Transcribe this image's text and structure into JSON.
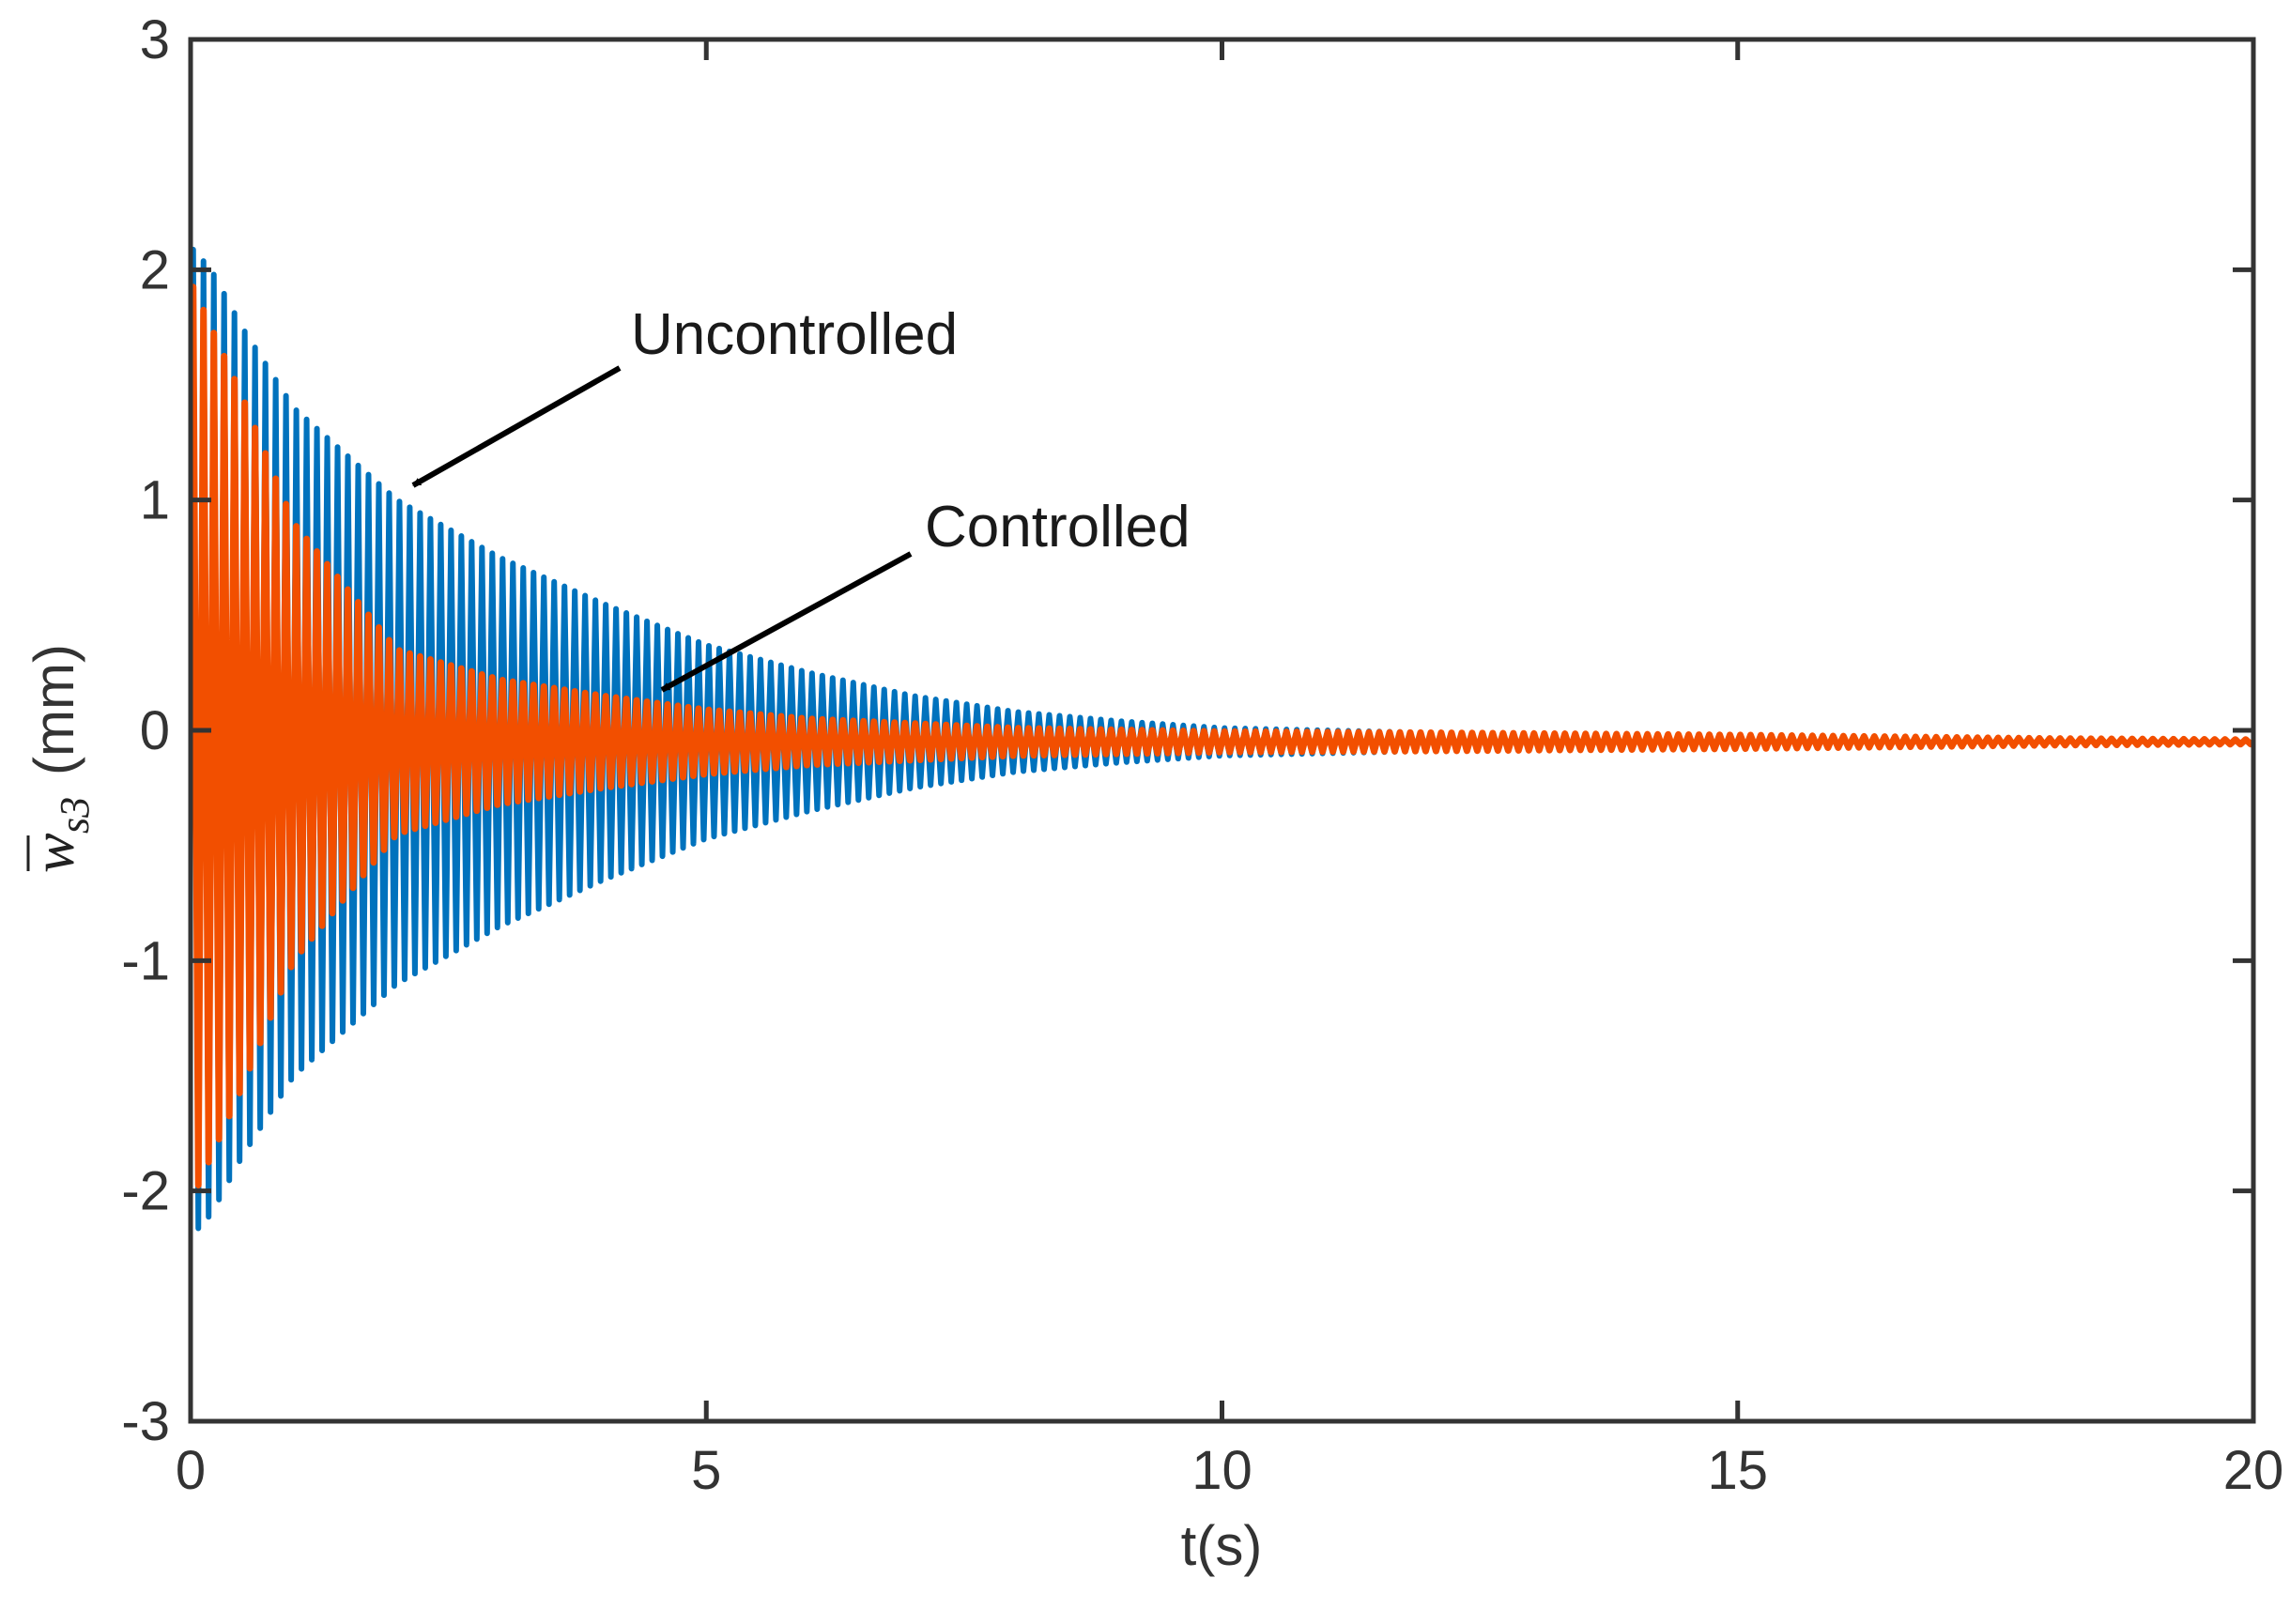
{
  "chart_data": {
    "type": "line",
    "title": "",
    "xlabel": "t(s)",
    "ylabel": {
      "symbol": "w",
      "subscript": "s3",
      "unit": "(mm)"
    },
    "xlim": [
      0,
      20
    ],
    "ylim": [
      -3,
      3
    ],
    "x_ticks": [
      0,
      5,
      10,
      15,
      20
    ],
    "y_ticks": [
      -3,
      -2,
      -1,
      0,
      1,
      2,
      3
    ],
    "x_tick_labels": [
      "0",
      "5",
      "10",
      "15",
      "20"
    ],
    "y_tick_labels": [
      "-3",
      "-2",
      "-1",
      "0",
      "1",
      "2",
      "3"
    ],
    "grid": false,
    "series": [
      {
        "name": "Uncontrolled",
        "color": "#0072BD",
        "offset": -0.05,
        "envelope_t": [
          0,
          0.2,
          0.5,
          1,
          2,
          3,
          4,
          5,
          6,
          7,
          8,
          9,
          10,
          12,
          15,
          18,
          20
        ],
        "envelope_amp": [
          2.15,
          2.05,
          1.8,
          1.45,
          1.05,
          0.8,
          0.6,
          0.42,
          0.3,
          0.2,
          0.13,
          0.09,
          0.06,
          0.04,
          0.025,
          0.012,
          0.008
        ],
        "period": 0.1
      },
      {
        "name": "Controlled",
        "color": "#F24F00",
        "offset": -0.05,
        "envelope_t": [
          0,
          0.2,
          0.5,
          1,
          2,
          3,
          4,
          5,
          6,
          7,
          8,
          10,
          12,
          15,
          18,
          20
        ],
        "envelope_amp": [
          2.0,
          1.8,
          1.5,
          0.95,
          0.4,
          0.27,
          0.2,
          0.14,
          0.1,
          0.08,
          0.06,
          0.045,
          0.04,
          0.03,
          0.015,
          0.01
        ],
        "period": 0.1
      }
    ],
    "annotations": [
      {
        "text": "Uncontrolled",
        "arrow_to": [
          2.2,
          1.05
        ]
      },
      {
        "text": "Controlled",
        "arrow_to": [
          4.6,
          0.15
        ]
      }
    ]
  }
}
